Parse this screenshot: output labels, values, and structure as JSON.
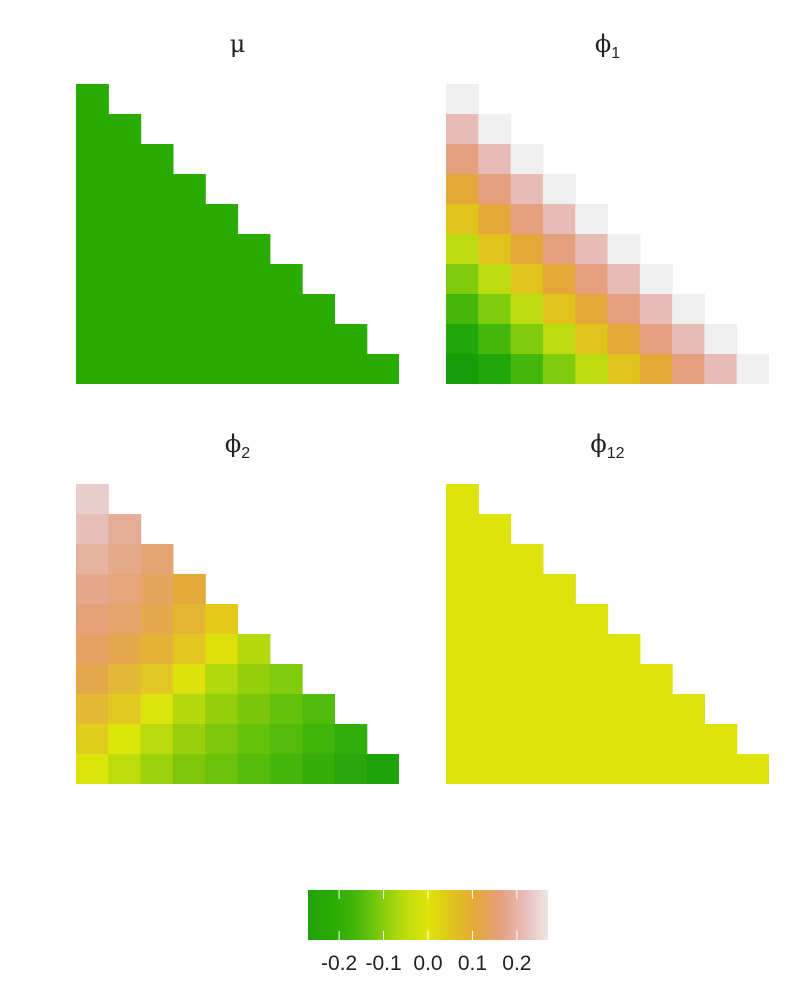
{
  "chart_data": [
    {
      "type": "heatmap",
      "title_symbol": "μ",
      "title_subscript": "",
      "n": 10,
      "fill": "constant",
      "color": "#2aab00"
    },
    {
      "type": "heatmap",
      "title_symbol": "ϕ",
      "title_subscript": "1",
      "n": 10,
      "fill": "by_diagonal",
      "diagonal_colors": [
        "#efefef",
        "#e8bcb6",
        "#e5a07f",
        "#e5a73a",
        "#e0c41b",
        "#bcdc0f",
        "#7fcb0c",
        "#44b70b",
        "#22a70a",
        "#159e0a"
      ]
    },
    {
      "type": "heatmap",
      "title_symbol": "ϕ",
      "title_subscript": "2",
      "n": 10,
      "fill": "by_position",
      "rows": [
        [
          "#e8cdcb"
        ],
        [
          "#e7beb8",
          "#e5ad96"
        ],
        [
          "#e6b39f",
          "#e5aa8a",
          "#e5a572"
        ],
        [
          "#e6a88a",
          "#e6a57a",
          "#e6a55f",
          "#e5a93a"
        ],
        [
          "#e5a27a",
          "#e5a46a",
          "#e5a94b",
          "#e4b530",
          "#e4c91a"
        ],
        [
          "#e5a162",
          "#e4a84b",
          "#e4b335",
          "#e3c51f",
          "#dde00a",
          "#b4d90c"
        ],
        [
          "#e4a84a",
          "#e3b836",
          "#e3c724",
          "#dde20c",
          "#b2d90b",
          "#94cf0c",
          "#7fcb0c"
        ],
        [
          "#e3b935",
          "#e3ca22",
          "#dde40b",
          "#b5d90c",
          "#95cf0c",
          "#7cc70c",
          "#64c10b",
          "#4fbb0b"
        ],
        [
          "#e1cd1d",
          "#dde50b",
          "#b9da0c",
          "#98d00c",
          "#7ec70c",
          "#66c10b",
          "#52bb0b",
          "#3fb50b",
          "#31ad0b"
        ],
        [
          "#dde40b",
          "#bcdc0c",
          "#9cd20c",
          "#80c70c",
          "#6ac20b",
          "#56bc0b",
          "#44b60b",
          "#38ae0b",
          "#2aa70a",
          "#1ea20a"
        ]
      ]
    },
    {
      "type": "heatmap",
      "title_symbol": "ϕ",
      "title_subscript": "12",
      "n": 10,
      "fill": "constant",
      "color": "#dee30b"
    }
  ],
  "legend": {
    "type": "colorbar",
    "range": [
      -0.27,
      0.27
    ],
    "stops": [
      "#1ea20a",
      "#2aab00",
      "#44b60b",
      "#7fcb0c",
      "#bcdc0f",
      "#dde40b",
      "#e0c41b",
      "#e5a73a",
      "#e5a07f",
      "#e8bcb6",
      "#ede6e4"
    ],
    "ticks": [
      {
        "value": -0.2,
        "label": "-0.2"
      },
      {
        "value": -0.1,
        "label": "-0.1"
      },
      {
        "value": 0.0,
        "label": "0.0"
      },
      {
        "value": 0.1,
        "label": "0.1"
      },
      {
        "value": 0.2,
        "label": "0.2"
      }
    ]
  }
}
